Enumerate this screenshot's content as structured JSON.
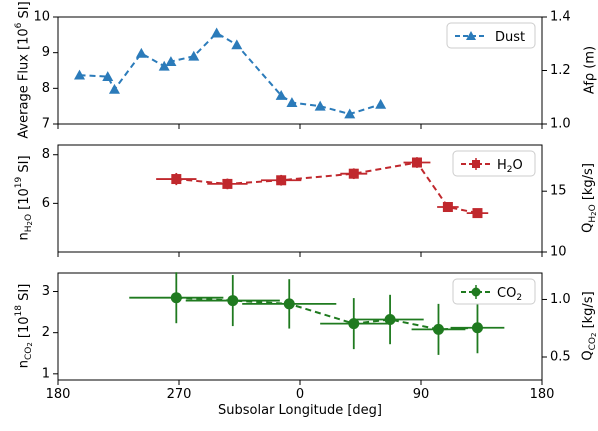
{
  "chart_data": [
    {
      "type": "line",
      "panel": "dust",
      "ylabel": "Average Flux [10⁶ SI]",
      "ylabel2": "Afρ (m)",
      "ylim": [
        7,
        10
      ],
      "ylim2": [
        1.0,
        1.4
      ],
      "yticks": [
        "7",
        "8",
        "9",
        "10"
      ],
      "yticks2": [
        "1.0",
        "1.2",
        "1.4"
      ],
      "legend_position": "top-right",
      "color": "#2b7bba",
      "marker": "triangle",
      "series": [
        {
          "name": "Dust",
          "x": [
            196,
            217,
            222,
            242,
            259,
            264,
            281,
            298,
            313,
            346,
            354,
            375,
            397,
            420
          ],
          "y": [
            8.37,
            8.33,
            7.97,
            8.98,
            8.62,
            8.75,
            8.9,
            9.55,
            9.22,
            7.8,
            7.6,
            7.5,
            7.28,
            7.55
          ]
        }
      ]
    },
    {
      "type": "line",
      "panel": "h2o",
      "ylabel": "n_H2O [10¹⁹ SI]",
      "ylabel2": "Q_H2O [kg/s]",
      "ylim": [
        4.0,
        8.4
      ],
      "ylim2": [
        10,
        18.8
      ],
      "yticks": [
        "6",
        "8"
      ],
      "yticks2": [
        "10",
        "15"
      ],
      "legend_position": "top-right",
      "color": "#c0282d",
      "marker": "square",
      "series": [
        {
          "name": "H₂O",
          "x": [
            268,
            306,
            346,
            400,
            447,
            470,
            492
          ],
          "y": [
            7.0,
            6.8,
            6.95,
            7.22,
            7.68,
            5.85,
            5.6
          ],
          "xerr": [
            15,
            15,
            15,
            10,
            10,
            8,
            8
          ],
          "yerr": [
            0.25,
            0.22,
            0.22,
            0.22,
            0.22,
            0.18,
            0.18
          ]
        }
      ]
    },
    {
      "type": "line",
      "panel": "co2",
      "ylabel": "n_CO2 [10¹⁸ SI]",
      "ylabel2": "Q_CO2 [kg/s]",
      "ylim": [
        0.85,
        3.45
      ],
      "ylim2": [
        0.3,
        1.23
      ],
      "yticks": [
        "1",
        "2",
        "3"
      ],
      "yticks2": [
        "0.5",
        "1.0"
      ],
      "legend_position": "top-right",
      "color": "#1f7a1f",
      "marker": "circle",
      "series": [
        {
          "name": "CO₂",
          "x": [
            268,
            310,
            352,
            400,
            427,
            463,
            492
          ],
          "y": [
            2.85,
            2.78,
            2.7,
            2.22,
            2.32,
            2.08,
            2.12
          ],
          "xerr": [
            35,
            35,
            35,
            25,
            25,
            20,
            20
          ],
          "yerr": [
            0.62,
            0.62,
            0.6,
            0.62,
            0.6,
            0.62,
            0.62
          ]
        }
      ]
    }
  ],
  "xaxis": {
    "label": "Subsolar Longitude [deg]",
    "range": [
      180,
      540
    ],
    "ticks": [
      {
        "value": 180,
        "label": "180"
      },
      {
        "value": 270,
        "label": "270"
      },
      {
        "value": 360,
        "label": "0"
      },
      {
        "value": 450,
        "label": "90"
      },
      {
        "value": 540,
        "label": "180"
      }
    ]
  }
}
